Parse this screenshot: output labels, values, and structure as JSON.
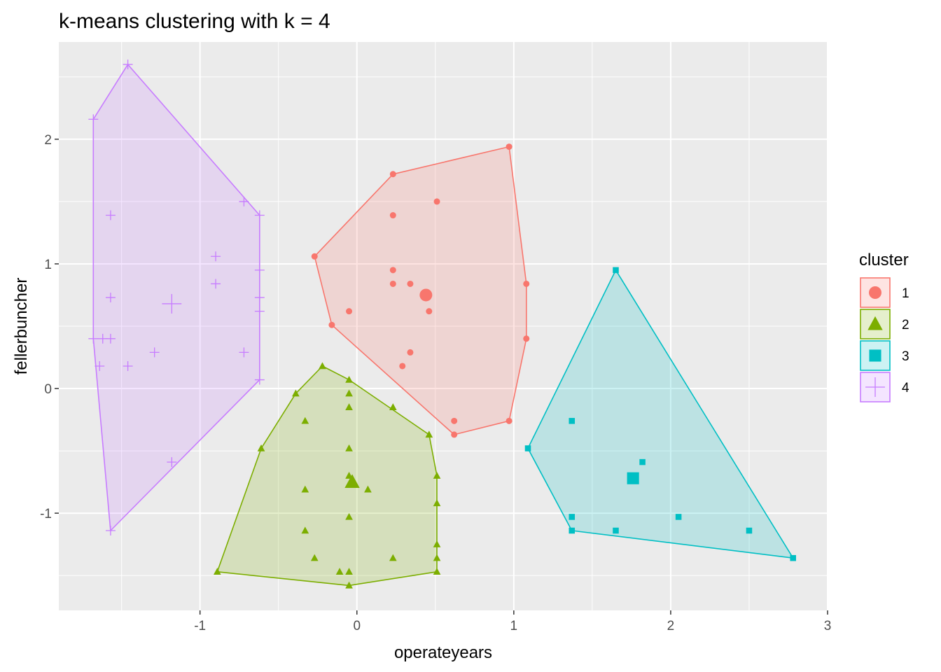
{
  "chart_data": {
    "type": "scatter",
    "title": "k-means clustering with k = 4",
    "xlabel": "operateyears",
    "ylabel": "fellerbuncher",
    "xlim": [
      -1.9,
      3.0
    ],
    "ylim": [
      -1.78,
      2.78
    ],
    "x_ticks": [
      -1,
      0,
      1,
      2,
      3
    ],
    "y_ticks": [
      -1,
      0,
      1,
      2
    ],
    "x_tick_labels": [
      "-1",
      "0",
      "1",
      "2",
      "3"
    ],
    "y_tick_labels": [
      "-1",
      "0",
      "1",
      "2"
    ],
    "grid": true,
    "panel_background": "#ebebeb",
    "legend": {
      "title": "cluster",
      "position": "right"
    },
    "series": [
      {
        "name": "1",
        "color": "#f8766d",
        "shape": "circle",
        "points": [
          [
            0.97,
            1.94
          ],
          [
            0.23,
            1.72
          ],
          [
            0.51,
            1.5
          ],
          [
            0.23,
            1.39
          ],
          [
            -0.27,
            1.06
          ],
          [
            0.23,
            0.95
          ],
          [
            0.23,
            0.84
          ],
          [
            0.34,
            0.84
          ],
          [
            1.08,
            0.84
          ],
          [
            -0.05,
            0.62
          ],
          [
            0.46,
            0.62
          ],
          [
            -0.16,
            0.51
          ],
          [
            1.08,
            0.4
          ],
          [
            0.34,
            0.29
          ],
          [
            0.29,
            0.18
          ],
          [
            0.62,
            -0.26
          ],
          [
            0.97,
            -0.26
          ],
          [
            0.62,
            -0.37
          ]
        ],
        "center": [
          0.44,
          0.75
        ],
        "hull": [
          [
            0.97,
            1.94
          ],
          [
            1.08,
            0.84
          ],
          [
            1.08,
            0.4
          ],
          [
            0.97,
            -0.26
          ],
          [
            0.62,
            -0.37
          ],
          [
            -0.16,
            0.51
          ],
          [
            -0.27,
            1.06
          ],
          [
            0.23,
            1.72
          ]
        ]
      },
      {
        "name": "2",
        "color": "#7cae00",
        "shape": "triangle",
        "points": [
          [
            -0.22,
            0.18
          ],
          [
            -0.05,
            0.07
          ],
          [
            -0.39,
            -0.04
          ],
          [
            -0.05,
            -0.04
          ],
          [
            -0.05,
            -0.15
          ],
          [
            0.23,
            -0.15
          ],
          [
            -0.33,
            -0.26
          ],
          [
            0.46,
            -0.37
          ],
          [
            -0.61,
            -0.48
          ],
          [
            -0.05,
            -0.48
          ],
          [
            0.51,
            -0.7
          ],
          [
            -0.05,
            -0.7
          ],
          [
            -0.33,
            -0.81
          ],
          [
            0.07,
            -0.81
          ],
          [
            0.51,
            -0.92
          ],
          [
            -0.05,
            -1.03
          ],
          [
            -0.33,
            -1.14
          ],
          [
            0.51,
            -1.25
          ],
          [
            -0.27,
            -1.36
          ],
          [
            0.23,
            -1.36
          ],
          [
            0.51,
            -1.36
          ],
          [
            -0.89,
            -1.47
          ],
          [
            -0.11,
            -1.47
          ],
          [
            -0.05,
            -1.47
          ],
          [
            0.51,
            -1.47
          ],
          [
            -0.05,
            -1.58
          ]
        ],
        "center": [
          -0.03,
          -0.75
        ],
        "hull": [
          [
            -0.22,
            0.18
          ],
          [
            -0.05,
            0.07
          ],
          [
            0.46,
            -0.37
          ],
          [
            0.51,
            -0.7
          ],
          [
            0.51,
            -1.47
          ],
          [
            -0.05,
            -1.58
          ],
          [
            -0.89,
            -1.47
          ],
          [
            -0.61,
            -0.48
          ],
          [
            -0.39,
            -0.04
          ]
        ]
      },
      {
        "name": "3",
        "color": "#00bfc4",
        "shape": "square",
        "points": [
          [
            1.65,
            0.95
          ],
          [
            1.37,
            -0.26
          ],
          [
            1.09,
            -0.48
          ],
          [
            1.82,
            -0.59
          ],
          [
            1.37,
            -1.03
          ],
          [
            2.05,
            -1.03
          ],
          [
            1.37,
            -1.14
          ],
          [
            1.65,
            -1.14
          ],
          [
            2.5,
            -1.14
          ],
          [
            2.78,
            -1.36
          ]
        ],
        "center": [
          1.76,
          -0.72
        ],
        "hull": [
          [
            1.65,
            0.95
          ],
          [
            2.78,
            -1.36
          ],
          [
            1.37,
            -1.14
          ],
          [
            1.09,
            -0.48
          ]
        ]
      },
      {
        "name": "4",
        "color": "#c77cff",
        "shape": "cross",
        "points": [
          [
            -1.46,
            2.6
          ],
          [
            -1.68,
            2.16
          ],
          [
            -0.72,
            1.5
          ],
          [
            -1.57,
            1.39
          ],
          [
            -0.62,
            1.39
          ],
          [
            -0.9,
            1.06
          ],
          [
            -0.62,
            0.95
          ],
          [
            -0.9,
            0.84
          ],
          [
            -1.57,
            0.73
          ],
          [
            -0.62,
            0.73
          ],
          [
            -0.62,
            0.62
          ],
          [
            -1.68,
            0.4
          ],
          [
            -1.62,
            0.4
          ],
          [
            -1.57,
            0.4
          ],
          [
            -0.72,
            0.29
          ],
          [
            -1.29,
            0.29
          ],
          [
            -1.64,
            0.18
          ],
          [
            -1.46,
            0.18
          ],
          [
            -0.62,
            0.07
          ],
          [
            -1.18,
            -0.59
          ],
          [
            -1.57,
            -1.14
          ]
        ],
        "center": [
          -1.18,
          0.68
        ],
        "hull": [
          [
            -1.46,
            2.6
          ],
          [
            -0.62,
            1.39
          ],
          [
            -0.62,
            0.07
          ],
          [
            -1.57,
            -1.14
          ],
          [
            -1.68,
            0.4
          ],
          [
            -1.68,
            2.16
          ]
        ]
      }
    ]
  }
}
